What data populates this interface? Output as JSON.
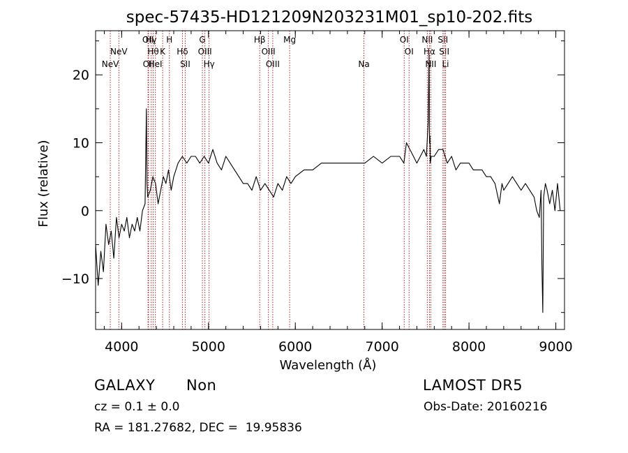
{
  "chart_data": {
    "type": "line",
    "title": "spec-57435-HD121209N203231M01_sp10-202.fits",
    "xlabel": "Wavelength (Å)",
    "ylabel": "Flux (relative)",
    "xlim": [
      3700,
      9100
    ],
    "ylim": [
      -17.5,
      26.5
    ],
    "xticks": [
      4000,
      5000,
      6000,
      7000,
      8000,
      9000
    ],
    "yticks": [
      -10,
      0,
      10,
      20
    ],
    "grid": false,
    "series": [
      {
        "x": [
          3700,
          3730,
          3760,
          3790,
          3820,
          3850,
          3880,
          3910,
          3940,
          3970,
          4000,
          4030,
          4060,
          4090,
          4120,
          4150,
          4180,
          4210,
          4240,
          4270,
          4285,
          4292,
          4300,
          4330,
          4360,
          4390,
          4420,
          4450,
          4480,
          4510,
          4540,
          4570,
          4600,
          4650,
          4700,
          4750,
          4800,
          4850,
          4900,
          4950,
          5000,
          5050,
          5100,
          5150,
          5200,
          5250,
          5300,
          5350,
          5400,
          5450,
          5500,
          5550,
          5600,
          5650,
          5700,
          5750,
          5800,
          5850,
          5900,
          5950,
          6000,
          6100,
          6200,
          6300,
          6400,
          6500,
          6600,
          6700,
          6800,
          6900,
          7000,
          7100,
          7200,
          7250,
          7280,
          7320,
          7360,
          7400,
          7440,
          7480,
          7510,
          7530,
          7540,
          7545,
          7550,
          7555,
          7565,
          7600,
          7650,
          7700,
          7750,
          7800,
          7850,
          7900,
          7950,
          8000,
          8050,
          8100,
          8150,
          8200,
          8250,
          8300,
          8350,
          8380,
          8400,
          8450,
          8500,
          8550,
          8600,
          8650,
          8700,
          8750,
          8780,
          8810,
          8830,
          8840,
          8850,
          8860,
          8880,
          8900,
          8930,
          8960,
          8990,
          9020,
          9050
        ],
        "y": [
          -5,
          -11,
          -6,
          -9,
          -2,
          -5,
          -3,
          -7,
          -1,
          -4,
          -2,
          -3,
          -1,
          -4,
          -2,
          -3,
          -1,
          -3,
          0,
          1,
          15,
          4,
          2,
          3,
          5,
          4,
          1,
          3,
          5,
          4,
          6,
          3,
          5,
          7,
          8,
          7,
          8,
          8,
          7,
          8,
          7,
          9,
          7,
          6,
          8,
          7,
          6,
          5,
          4,
          4,
          3,
          5,
          3,
          4,
          3,
          2,
          4,
          3,
          5,
          4,
          5,
          6,
          6,
          7,
          7,
          7,
          7,
          7,
          7,
          8,
          7,
          8,
          8,
          7,
          10,
          9,
          8,
          7,
          8,
          9,
          8,
          13,
          23,
          10,
          11,
          7,
          8,
          8,
          9,
          9,
          7,
          8,
          6,
          7,
          7,
          7,
          6,
          6,
          6,
          5,
          5,
          4,
          1,
          4,
          3,
          4,
          5,
          4,
          3,
          4,
          3,
          2,
          0,
          -1,
          3,
          -8,
          -15,
          2,
          4,
          3,
          1,
          3,
          0,
          4,
          0
        ]
      }
    ],
    "lines": [
      {
        "x": 3869,
        "label": "NeV",
        "row": 3
      },
      {
        "x": 3968,
        "label": "NeV",
        "row": 2
      },
      {
        "x": 4304,
        "label": "OII",
        "row": 1
      },
      {
        "x": 4310,
        "label": "OII",
        "row": 3
      },
      {
        "x": 4340,
        "label": "Hγ",
        "row": 1
      },
      {
        "x": 4363,
        "label": "Hθ",
        "row": 2
      },
      {
        "x": 4388,
        "label": "HeI",
        "row": 3
      },
      {
        "x": 4472,
        "label": "K",
        "row": 2
      },
      {
        "x": 4550,
        "label": "H",
        "row": 1
      },
      {
        "x": 4700,
        "label": "Hδ",
        "row": 2
      },
      {
        "x": 4732,
        "label": "SII",
        "row": 3
      },
      {
        "x": 4930,
        "label": "G",
        "row": 1
      },
      {
        "x": 4959,
        "label": "OIII",
        "row": 2
      },
      {
        "x": 5007,
        "label": "Hγ",
        "row": 3
      },
      {
        "x": 5590,
        "label": "Hβ",
        "row": 1
      },
      {
        "x": 5690,
        "label": "OIII",
        "row": 2
      },
      {
        "x": 5740,
        "label": "OIII",
        "row": 3
      },
      {
        "x": 5935,
        "label": "Mg",
        "row": 1
      },
      {
        "x": 6790,
        "label": "Na",
        "row": 3
      },
      {
        "x": 7254,
        "label": "OI",
        "row": 1
      },
      {
        "x": 7310,
        "label": "OI",
        "row": 2
      },
      {
        "x": 7520,
        "label": "NII",
        "row": 1
      },
      {
        "x": 7545,
        "label": "Hα",
        "row": 2
      },
      {
        "x": 7560,
        "label": "NII",
        "row": 3
      },
      {
        "x": 7700,
        "label": "SII",
        "row": 1
      },
      {
        "x": 7715,
        "label": "SII",
        "row": 2
      },
      {
        "x": 7730,
        "label": "Li",
        "row": 3
      }
    ]
  },
  "info": {
    "class_label": "GALAXY",
    "subclass_label": "Non",
    "survey": "LAMOST DR5",
    "cz": "cz = 0.1 ± 0.0",
    "obs_date": "Obs-Date: 20160216",
    "coords": "RA = 181.27682, DEC =  19.95836"
  }
}
